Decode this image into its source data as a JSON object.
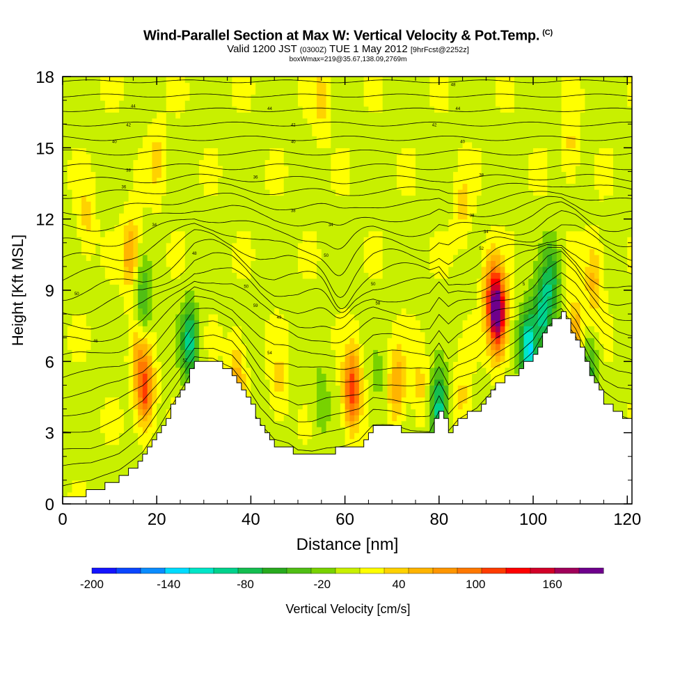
{
  "title": {
    "main": "Wind-Parallel Section at Max W: Vertical Velocity & Pot.Temp.",
    "copyright": "(C)",
    "valid_prefix": "Valid 1200 JST",
    "valid_utc": "(0300Z)",
    "valid_date": "TUE 1 May 2012",
    "forecast": "[9hrFcst@2252z]",
    "box": "boxWmax=219@35.67,138.09,2769m"
  },
  "chart_data": {
    "type": "heatmap",
    "xlabel": "Distance [nm]",
    "ylabel": "Height [Kft MSL]",
    "xlim": [
      0,
      121
    ],
    "ylim": [
      0,
      18
    ],
    "x_ticks": [
      "0",
      "20",
      "40",
      "60",
      "80",
      "100",
      "120"
    ],
    "y_ticks": [
      "0",
      "3",
      "6",
      "9",
      "12",
      "15",
      "18"
    ],
    "x_tick_values": [
      0,
      20,
      40,
      60,
      80,
      100,
      120
    ],
    "y_tick_values": [
      0,
      3,
      6,
      9,
      12,
      15,
      18
    ],
    "colorbar": {
      "label": "Vertical Velocity [cm/s]",
      "tick_labels": [
        "-200",
        "-140",
        "-80",
        "-20",
        "40",
        "100",
        "160"
      ],
      "tick_values": [
        -200,
        -140,
        -80,
        -20,
        40,
        100,
        160
      ],
      "range": [
        -200,
        200
      ],
      "colors": [
        "#1414ff",
        "#0a46ff",
        "#0a8cff",
        "#00dcff",
        "#00e6c8",
        "#00d28c",
        "#14be50",
        "#28aa1e",
        "#50be14",
        "#78d200",
        "#c8f000",
        "#ffff00",
        "#ffd200",
        "#ffb400",
        "#ff9600",
        "#ff7800",
        "#ff3c00",
        "#ff0000",
        "#d20028",
        "#a0005a",
        "#6e008c"
      ]
    },
    "terrain": {
      "x": [
        0,
        6,
        12,
        17,
        20,
        22,
        25,
        28,
        32,
        36,
        39,
        42,
        45,
        48,
        50,
        53,
        56,
        60,
        63,
        66,
        70,
        74,
        78,
        80,
        82,
        84,
        88,
        92,
        96,
        100,
        103,
        106,
        109,
        112,
        115,
        118,
        121
      ],
      "h": [
        0.3,
        0.5,
        1.1,
        2.0,
        3.0,
        3.7,
        4.8,
        6.0,
        6.0,
        5.5,
        4.5,
        3.3,
        2.5,
        2.3,
        2.0,
        2.0,
        2.2,
        2.3,
        2.5,
        3.2,
        3.2,
        3.0,
        3.0,
        4.0,
        3.0,
        3.5,
        4.0,
        5.0,
        5.5,
        6.3,
        7.5,
        8.0,
        7.0,
        5.5,
        4.3,
        3.8,
        3.6
      ]
    },
    "velocity_features": [
      {
        "x": 17.5,
        "y": 4.8,
        "value": 110
      },
      {
        "x": 16,
        "y": 6.5,
        "value": 40
      },
      {
        "x": 14.5,
        "y": 10.5,
        "value": 60
      },
      {
        "x": 17,
        "y": 8.5,
        "value": -60
      },
      {
        "x": 27,
        "y": 6.8,
        "value": -100
      },
      {
        "x": 37,
        "y": 5.5,
        "value": 50
      },
      {
        "x": 46,
        "y": 5.0,
        "value": 30
      },
      {
        "x": 55,
        "y": 4.3,
        "value": -30
      },
      {
        "x": 61.5,
        "y": 4.8,
        "value": 120
      },
      {
        "x": 67,
        "y": 5.0,
        "value": -20
      },
      {
        "x": 71,
        "y": 5.0,
        "value": 60
      },
      {
        "x": 76,
        "y": 5.0,
        "value": 30
      },
      {
        "x": 80,
        "y": 4.0,
        "value": -110
      },
      {
        "x": 85,
        "y": 4.5,
        "value": 30
      },
      {
        "x": 92.5,
        "y": 8.0,
        "value": 190
      },
      {
        "x": 91,
        "y": 9.0,
        "value": 70
      },
      {
        "x": 99,
        "y": 6.5,
        "value": -140
      },
      {
        "x": 102,
        "y": 8.0,
        "value": -100
      },
      {
        "x": 104,
        "y": 9.5,
        "value": -70
      },
      {
        "x": 109,
        "y": 7.0,
        "value": 70
      },
      {
        "x": 112,
        "y": 5.5,
        "value": -60
      },
      {
        "x": 113,
        "y": 9.5,
        "value": 50
      },
      {
        "x": 5,
        "y": 12.0,
        "value": 30
      },
      {
        "x": 20,
        "y": 14.5,
        "value": 30
      },
      {
        "x": 55,
        "y": 17.0,
        "value": 30
      },
      {
        "x": 85,
        "y": 12.5,
        "value": 30
      },
      {
        "x": 108,
        "y": 15.0,
        "value": 30
      }
    ],
    "isentropes": {
      "base_heights": [
        0.5,
        1.3,
        2.0,
        2.8,
        3.6,
        4.4,
        5.2,
        6.0,
        6.7,
        7.4,
        8.1,
        8.8,
        9.5,
        10.2,
        10.9,
        11.6,
        12.3,
        13.0,
        13.6,
        14.2,
        14.8,
        15.4,
        16.0,
        16.6,
        17.2,
        17.8
      ],
      "labels": [
        {
          "x": 7,
          "y": 6.8,
          "text": "46"
        },
        {
          "x": 3,
          "y": 8.8,
          "text": "50"
        },
        {
          "x": 13,
          "y": 13.3,
          "text": "36"
        },
        {
          "x": 14,
          "y": 14.0,
          "text": "38"
        },
        {
          "x": 11,
          "y": 15.2,
          "text": "40"
        },
        {
          "x": 14,
          "y": 15.9,
          "text": "42"
        },
        {
          "x": 15,
          "y": 16.7,
          "text": "44"
        },
        {
          "x": 19.5,
          "y": 11.7,
          "text": "34"
        },
        {
          "x": 28,
          "y": 10.5,
          "text": "48"
        },
        {
          "x": 26,
          "y": 6.0,
          "text": "52"
        },
        {
          "x": 39,
          "y": 9.1,
          "text": "50"
        },
        {
          "x": 41,
          "y": 8.3,
          "text": "59"
        },
        {
          "x": 46,
          "y": 7.8,
          "text": "49"
        },
        {
          "x": 44,
          "y": 6.3,
          "text": "54"
        },
        {
          "x": 41,
          "y": 13.7,
          "text": "36"
        },
        {
          "x": 49,
          "y": 12.3,
          "text": "38"
        },
        {
          "x": 49,
          "y": 15.2,
          "text": "40"
        },
        {
          "x": 49,
          "y": 15.9,
          "text": "42"
        },
        {
          "x": 44,
          "y": 16.6,
          "text": "44"
        },
        {
          "x": 57,
          "y": 11.7,
          "text": "34"
        },
        {
          "x": 56,
          "y": 10.4,
          "text": "50"
        },
        {
          "x": 66,
          "y": 9.2,
          "text": "50"
        },
        {
          "x": 67,
          "y": 8.4,
          "text": "58"
        },
        {
          "x": 87,
          "y": 12.1,
          "text": "38"
        },
        {
          "x": 89,
          "y": 13.8,
          "text": "38"
        },
        {
          "x": 85,
          "y": 15.2,
          "text": "40"
        },
        {
          "x": 79,
          "y": 15.9,
          "text": "42"
        },
        {
          "x": 84,
          "y": 16.6,
          "text": "44"
        },
        {
          "x": 83,
          "y": 17.6,
          "text": "48"
        },
        {
          "x": 90,
          "y": 11.4,
          "text": "34"
        },
        {
          "x": 89,
          "y": 10.7,
          "text": "52"
        },
        {
          "x": 98,
          "y": 9.2,
          "text": "5"
        }
      ]
    }
  }
}
